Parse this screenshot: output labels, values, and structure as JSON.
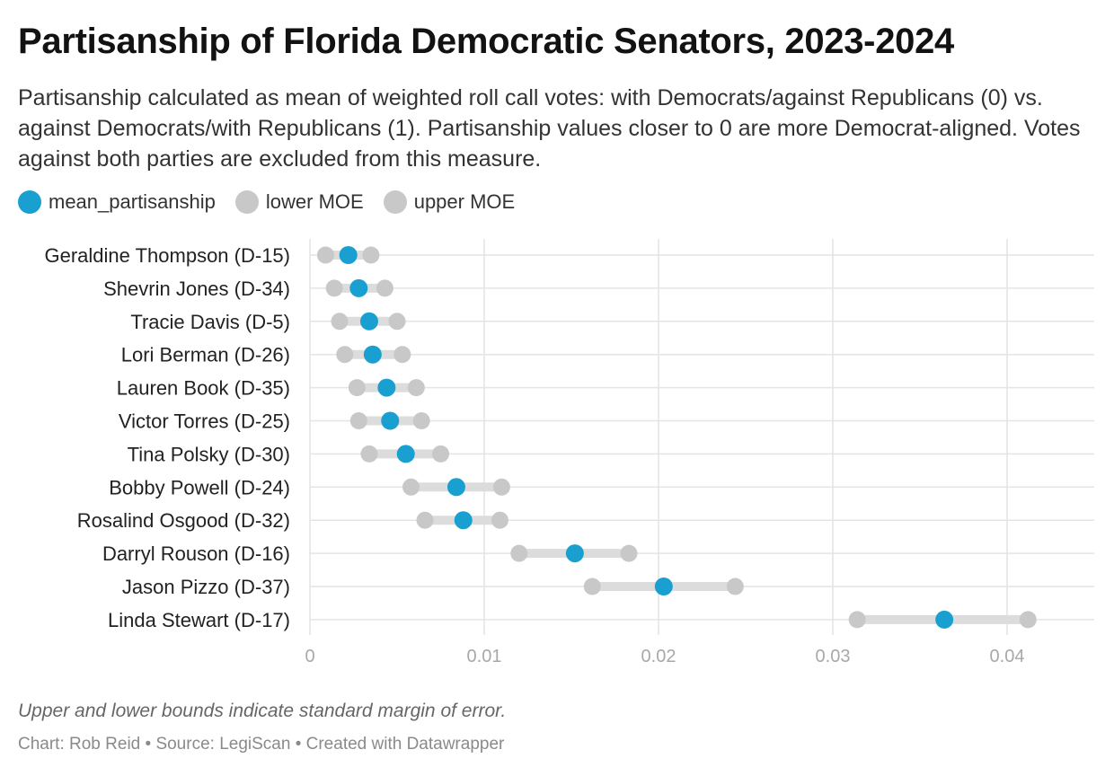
{
  "title": "Partisanship of Florida Democratic Senators, 2023-2024",
  "subtitle": "Partisanship calculated as mean of weighted roll call votes: with Democrats/against Republicans (0) vs. against Democrats/with Republicans (1). Partisanship values closer to 0 are more Democrat-aligned. Votes against both parties are excluded from this measure.",
  "legend": [
    {
      "label": "mean_partisanship",
      "color": "#1aa0d0"
    },
    {
      "label": "lower MOE",
      "color": "#c8c8c8"
    },
    {
      "label": "upper MOE",
      "color": "#c8c8c8"
    }
  ],
  "notes": "Upper and lower bounds indicate standard margin of error.",
  "footer": "Chart: Rob Reid • Source: LegiScan • Created with Datawrapper",
  "chart_data": {
    "type": "scatter",
    "subtype": "range-dot",
    "xlim": [
      0,
      0.045
    ],
    "x_ticks": [
      0,
      0.01,
      0.02,
      0.03,
      0.04
    ],
    "x_tick_labels": [
      "0",
      "0.01",
      "0.02",
      "0.03",
      "0.04"
    ],
    "grid": true,
    "legend_position": "top-left",
    "categories": [
      "Geraldine Thompson (D-15)",
      "Shevrin Jones (D-34)",
      "Tracie Davis (D-5)",
      "Lori Berman (D-26)",
      "Lauren Book (D-35)",
      "Victor Torres (D-25)",
      "Tina Polsky (D-30)",
      "Bobby Powell (D-24)",
      "Rosalind Osgood (D-32)",
      "Darryl Rouson (D-16)",
      "Jason Pizzo (D-37)",
      "Linda Stewart (D-17)"
    ],
    "series": [
      {
        "name": "mean_partisanship",
        "color": "#1aa0d0",
        "values": [
          0.0022,
          0.0028,
          0.0034,
          0.0036,
          0.0044,
          0.0046,
          0.0055,
          0.0084,
          0.0088,
          0.0152,
          0.0203,
          0.0364
        ]
      },
      {
        "name": "lower MOE",
        "color": "#c8c8c8",
        "values": [
          0.0009,
          0.0014,
          0.0017,
          0.002,
          0.0027,
          0.0028,
          0.0034,
          0.0058,
          0.0066,
          0.012,
          0.0162,
          0.0314
        ]
      },
      {
        "name": "upper MOE",
        "color": "#c8c8c8",
        "values": [
          0.0035,
          0.0043,
          0.005,
          0.0053,
          0.0061,
          0.0064,
          0.0075,
          0.011,
          0.0109,
          0.0183,
          0.0244,
          0.0412
        ]
      }
    ]
  }
}
